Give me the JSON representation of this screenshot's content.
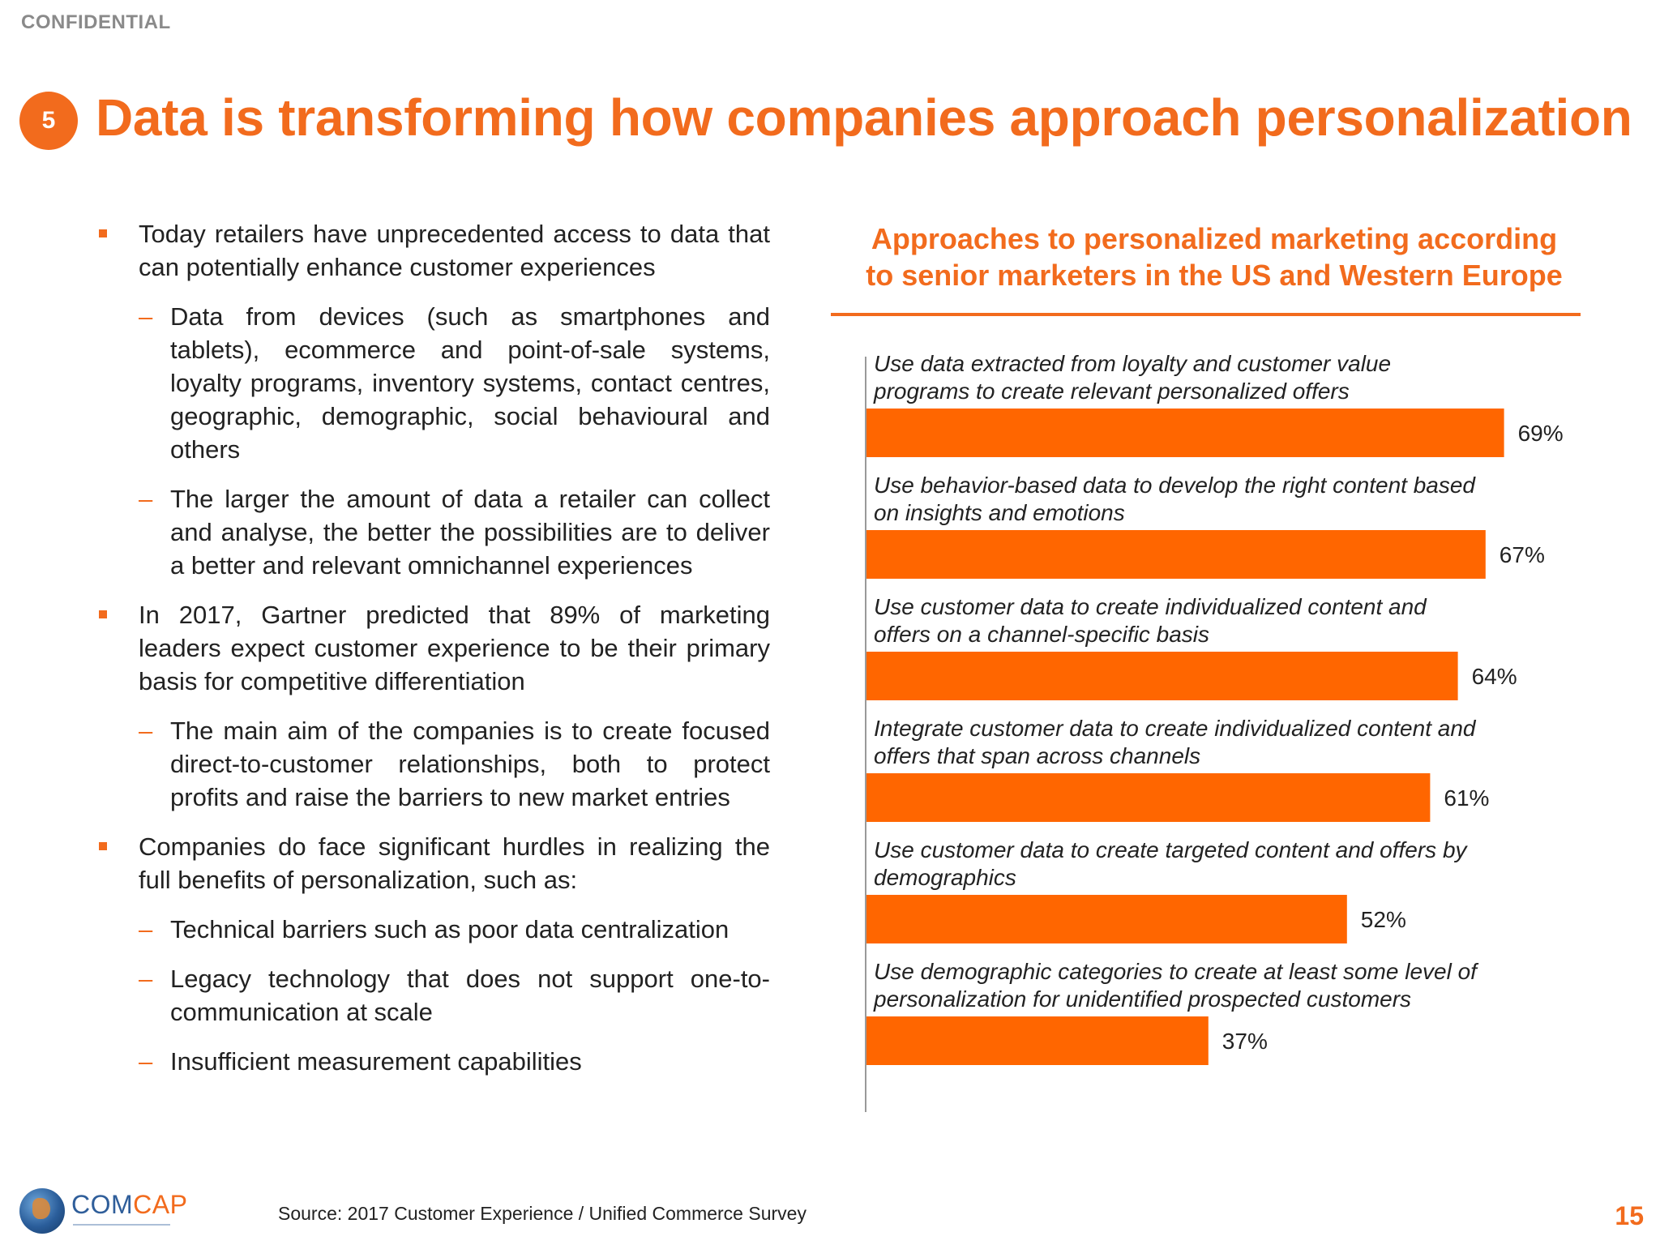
{
  "header": {
    "confidential": "CONFIDENTIAL",
    "section_number": "5",
    "title": "Data is transforming how companies approach personalization"
  },
  "bullets": [
    {
      "text": "Today retailers have unprecedented access to data that can potentially enhance customer experiences",
      "subs": [
        "Data from devices (such as smartphones and tablets), ecommerce and point-of-sale systems, loyalty programs, inventory systems, contact centres, geographic, demographic, social behavioural and others",
        "The larger the amount of data a retailer can collect and analyse, the better the possibilities are to deliver a better and relevant omnichannel experiences"
      ]
    },
    {
      "text": "In 2017, Gartner predicted that 89% of marketing leaders expect customer experience to be their primary basis for competitive differentiation",
      "subs": [
        "The main aim of the companies is to create focused direct-to-customer relationships, both to protect profits and raise the barriers to new market entries"
      ]
    },
    {
      "text": "Companies do face significant hurdles in realizing the full benefits of personalization, such as:",
      "subs": [
        "Technical barriers such as poor data centralization",
        "Legacy technology that does not support one-to-communication at scale",
        "Insufficient measurement capabilities"
      ]
    }
  ],
  "chart_data": {
    "type": "bar",
    "orientation": "horizontal",
    "title_lines": [
      "Approaches to personalized marketing according",
      "to senior marketers in the US and Western Europe"
    ],
    "categories": [
      [
        "Use data extracted from loyalty and customer value",
        "programs to create relevant personalized offers"
      ],
      [
        "Use behavior-based data to develop the right content based",
        "on insights and emotions"
      ],
      [
        "Use customer data to create individualized content and",
        "offers on a channel-specific basis"
      ],
      [
        "Integrate customer data to create individualized content and",
        "offers that span across channels"
      ],
      [
        "Use customer data to create targeted content and offers by",
        "demographics"
      ],
      [
        "Use demographic categories to create at least some level of",
        "personalization for unidentified prospected customers"
      ]
    ],
    "values": [
      69,
      67,
      64,
      61,
      52,
      37
    ],
    "value_labels": [
      "69%",
      "67%",
      "64%",
      "61%",
      "52%",
      "37%"
    ],
    "unit": "%",
    "bar_color": "#ff6600",
    "axis_line": true,
    "grid": false
  },
  "footer": {
    "logo_text_comp": "COM",
    "logo_text_cap": "CAP",
    "source": "Source: 2017 Customer Experience / Unified Commerce Survey",
    "page_number": "15"
  }
}
